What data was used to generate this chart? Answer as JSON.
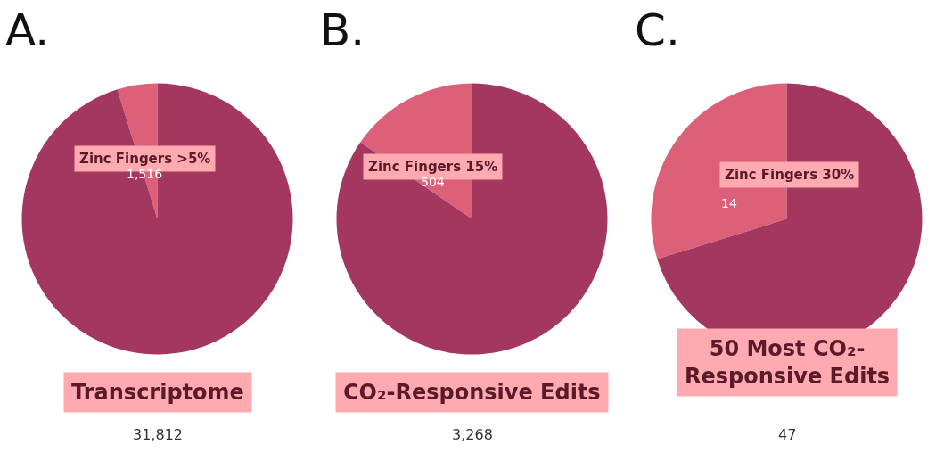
{
  "chart_data": [
    {
      "type": "pie",
      "title": "Transcriptome",
      "subtitle": "31,812",
      "annotations": [
        "A."
      ],
      "categories": [
        "Zinc Fingers >5%",
        null
      ],
      "values": [
        1516,
        30296
      ],
      "value_labels": [
        "1,516",
        null
      ],
      "colors": [
        "#db6078",
        "#a33760"
      ],
      "legend": false
    },
    {
      "type": "pie",
      "title": "CO₂-Responsive Edits",
      "subtitle": "3,268",
      "annotations": [
        "B."
      ],
      "categories": [
        "Zinc Fingers 15%",
        null
      ],
      "values": [
        504,
        2764
      ],
      "value_labels": [
        "504",
        null
      ],
      "colors": [
        "#db6078",
        "#a33760"
      ],
      "legend": false
    },
    {
      "type": "pie",
      "title": "50 Most CO₂-Responsive Edits",
      "subtitle": "47",
      "annotations": [
        "C."
      ],
      "categories": [
        "Zinc Fingers 30%",
        null
      ],
      "values": [
        14,
        33
      ],
      "value_labels": [
        "14",
        null
      ],
      "colors": [
        "#db6078",
        "#a33760"
      ],
      "legend": false
    }
  ]
}
